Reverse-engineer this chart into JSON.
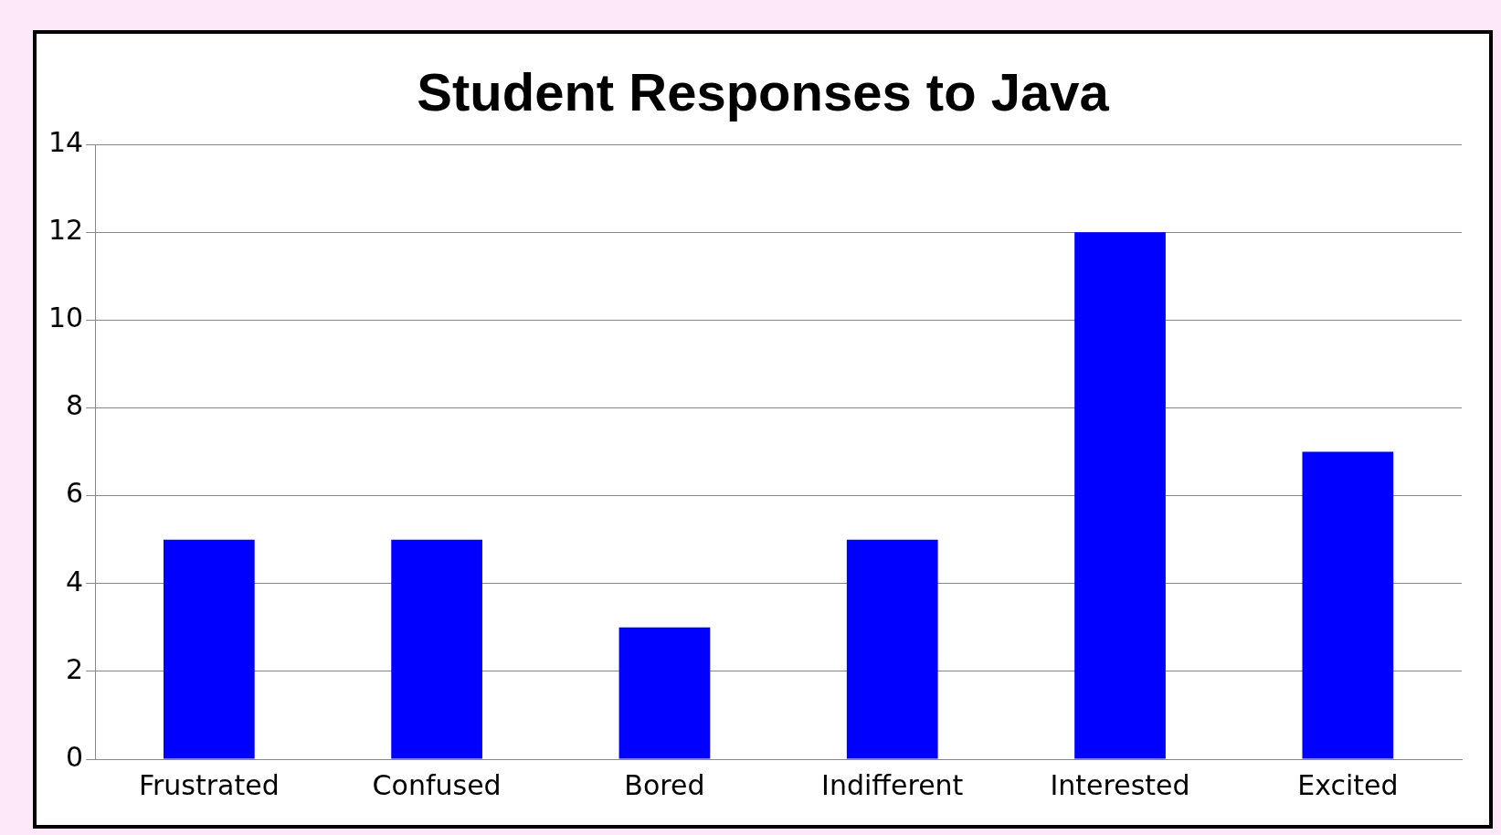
{
  "chart_data": {
    "type": "bar",
    "title": "Student Responses to Java",
    "categories": [
      "Frustrated",
      "Confused",
      "Bored",
      "Indifferent",
      "Interested",
      "Excited"
    ],
    "values": [
      5,
      5,
      3,
      5,
      12,
      7
    ],
    "color": "#0000ff",
    "ylim": [
      0,
      14
    ],
    "yticks": [
      0,
      2,
      4,
      6,
      8,
      10,
      12,
      14
    ],
    "grid": "y",
    "legend": false
  }
}
